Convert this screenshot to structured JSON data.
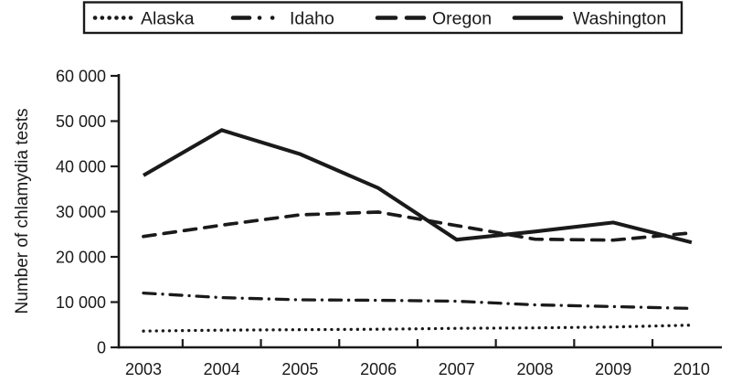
{
  "figure": {
    "background": "#ffffff",
    "ink_color": "#1a1a1a"
  },
  "legend": {
    "position": "top",
    "items": [
      {
        "label": "Alaska",
        "style": "dotted"
      },
      {
        "label": "Idaho",
        "style": "dash-dot"
      },
      {
        "label": "Oregon",
        "style": "dashed"
      },
      {
        "label": "Washington",
        "style": "solid"
      }
    ]
  },
  "chart_data": {
    "type": "line",
    "title": "",
    "xlabel": "",
    "ylabel": "Number of chlamydia tests",
    "x_tick_labels": [
      "2003",
      "2004",
      "2005",
      "2006",
      "2007",
      "2008",
      "2009",
      "2010"
    ],
    "x": [
      2003,
      2004,
      2005,
      2006,
      2007,
      2008,
      2009,
      2010
    ],
    "series": [
      {
        "name": "Alaska",
        "style": "dotted",
        "values": [
          3600,
          3800,
          3900,
          4000,
          4200,
          4300,
          4500,
          4900
        ]
      },
      {
        "name": "Idaho",
        "style": "dash-dot",
        "values": [
          12000,
          11000,
          10500,
          10400,
          10200,
          9400,
          9000,
          8600
        ]
      },
      {
        "name": "Oregon",
        "style": "dashed",
        "values": [
          24500,
          27000,
          29300,
          29900,
          26900,
          23900,
          23700,
          25300
        ]
      },
      {
        "name": "Washington",
        "style": "solid",
        "values": [
          38000,
          48000,
          42700,
          35200,
          23800,
          25600,
          27600,
          23200
        ]
      }
    ],
    "ylim": [
      0,
      60000
    ],
    "yticks": {
      "values": [
        0,
        10000,
        20000,
        30000,
        40000,
        50000,
        60000
      ],
      "labels": [
        "0",
        "10 000",
        "20 000",
        "30 000",
        "40 000",
        "50 000",
        "60 000"
      ]
    },
    "grid": false,
    "legend_position": "top-outside"
  }
}
